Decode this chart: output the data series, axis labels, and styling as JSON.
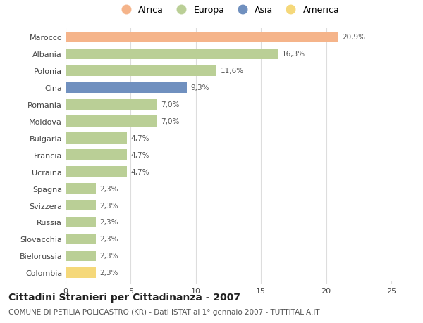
{
  "categories": [
    "Marocco",
    "Albania",
    "Polonia",
    "Cina",
    "Romania",
    "Moldova",
    "Bulgaria",
    "Francia",
    "Ucraina",
    "Spagna",
    "Svizzera",
    "Russia",
    "Slovacchia",
    "Bielorussia",
    "Colombia"
  ],
  "values": [
    20.9,
    16.3,
    11.6,
    9.3,
    7.0,
    7.0,
    4.7,
    4.7,
    4.7,
    2.3,
    2.3,
    2.3,
    2.3,
    2.3,
    2.3
  ],
  "labels": [
    "20,9%",
    "16,3%",
    "11,6%",
    "9,3%",
    "7,0%",
    "7,0%",
    "4,7%",
    "4,7%",
    "4,7%",
    "2,3%",
    "2,3%",
    "2,3%",
    "2,3%",
    "2,3%",
    "2,3%"
  ],
  "continents": [
    "Africa",
    "Europa",
    "Europa",
    "Asia",
    "Europa",
    "Europa",
    "Europa",
    "Europa",
    "Europa",
    "Europa",
    "Europa",
    "Europa",
    "Europa",
    "Europa",
    "America"
  ],
  "colors": {
    "Africa": "#F5B48A",
    "Europa": "#BACF96",
    "Asia": "#7090BF",
    "America": "#F5D87A"
  },
  "legend_order": [
    "Africa",
    "Europa",
    "Asia",
    "America"
  ],
  "xlim": [
    0,
    25
  ],
  "xticks": [
    0,
    5,
    10,
    15,
    20,
    25
  ],
  "title": "Cittadini Stranieri per Cittadinanza - 2007",
  "subtitle": "COMUNE DI PETILIA POLICASTRO (KR) - Dati ISTAT al 1° gennaio 2007 - TUTTITALIA.IT",
  "background_color": "#FFFFFF",
  "grid_color": "#DDDDDD",
  "bar_height": 0.65,
  "title_fontsize": 10,
  "subtitle_fontsize": 7.5,
  "label_fontsize": 7.5,
  "tick_fontsize": 8,
  "legend_fontsize": 9
}
